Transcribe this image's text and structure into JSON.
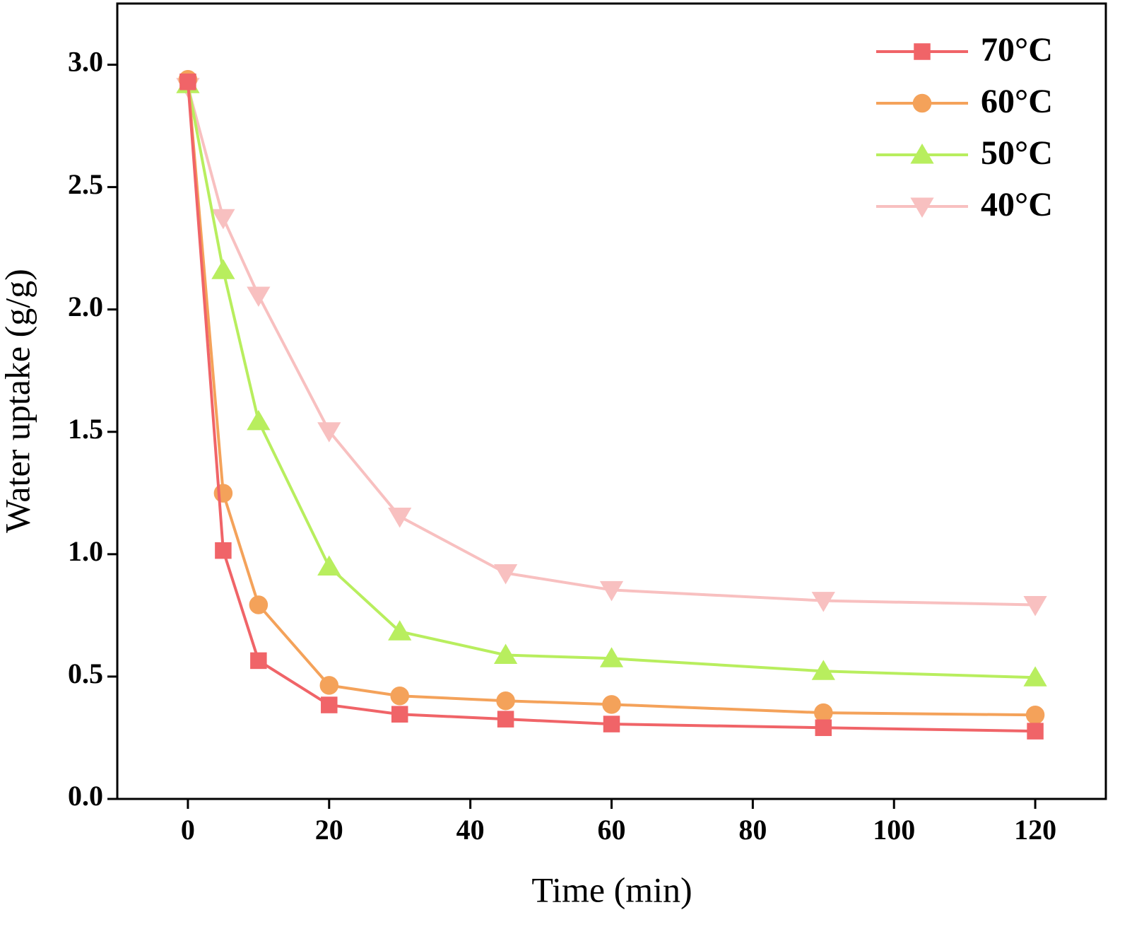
{
  "chart_data": {
    "type": "line",
    "x_label": "Time (min)",
    "y_label": "Water uptake (g/g)",
    "x": [
      0,
      5,
      10,
      20,
      30,
      45,
      60,
      90,
      120
    ],
    "series": [
      {
        "name": "70°C",
        "color": "#f06468",
        "marker": "square",
        "values": [
          2.93,
          1.015,
          0.565,
          0.384,
          0.346,
          0.326,
          0.306,
          0.291,
          0.277
        ]
      },
      {
        "name": "60°C",
        "color": "#f4a25a",
        "marker": "circle",
        "values": [
          2.94,
          1.249,
          0.793,
          0.464,
          0.421,
          0.401,
          0.386,
          0.352,
          0.343
        ]
      },
      {
        "name": "50°C",
        "color": "#b8ee5e",
        "marker": "triangle-up",
        "values": [
          2.92,
          2.16,
          1.543,
          0.949,
          0.684,
          0.588,
          0.574,
          0.522,
          0.496
        ]
      },
      {
        "name": "40°C",
        "color": "#f8c0c0",
        "marker": "triangle-down",
        "values": [
          2.91,
          2.374,
          2.057,
          1.503,
          1.154,
          0.923,
          0.854,
          0.81,
          0.793
        ]
      }
    ],
    "xlim": [
      -10,
      130
    ],
    "ylim": [
      0,
      3.25
    ],
    "xticks": [
      0,
      20,
      40,
      60,
      80,
      100,
      120
    ],
    "yticks": [
      {
        "value": 0,
        "label": "0.0"
      },
      0.5,
      {
        "value": 1,
        "label": "1.0"
      },
      1.5,
      {
        "value": 2,
        "label": "2.0"
      },
      2.5,
      {
        "value": 3,
        "label": "3.0"
      }
    ],
    "legend": "upper right"
  }
}
